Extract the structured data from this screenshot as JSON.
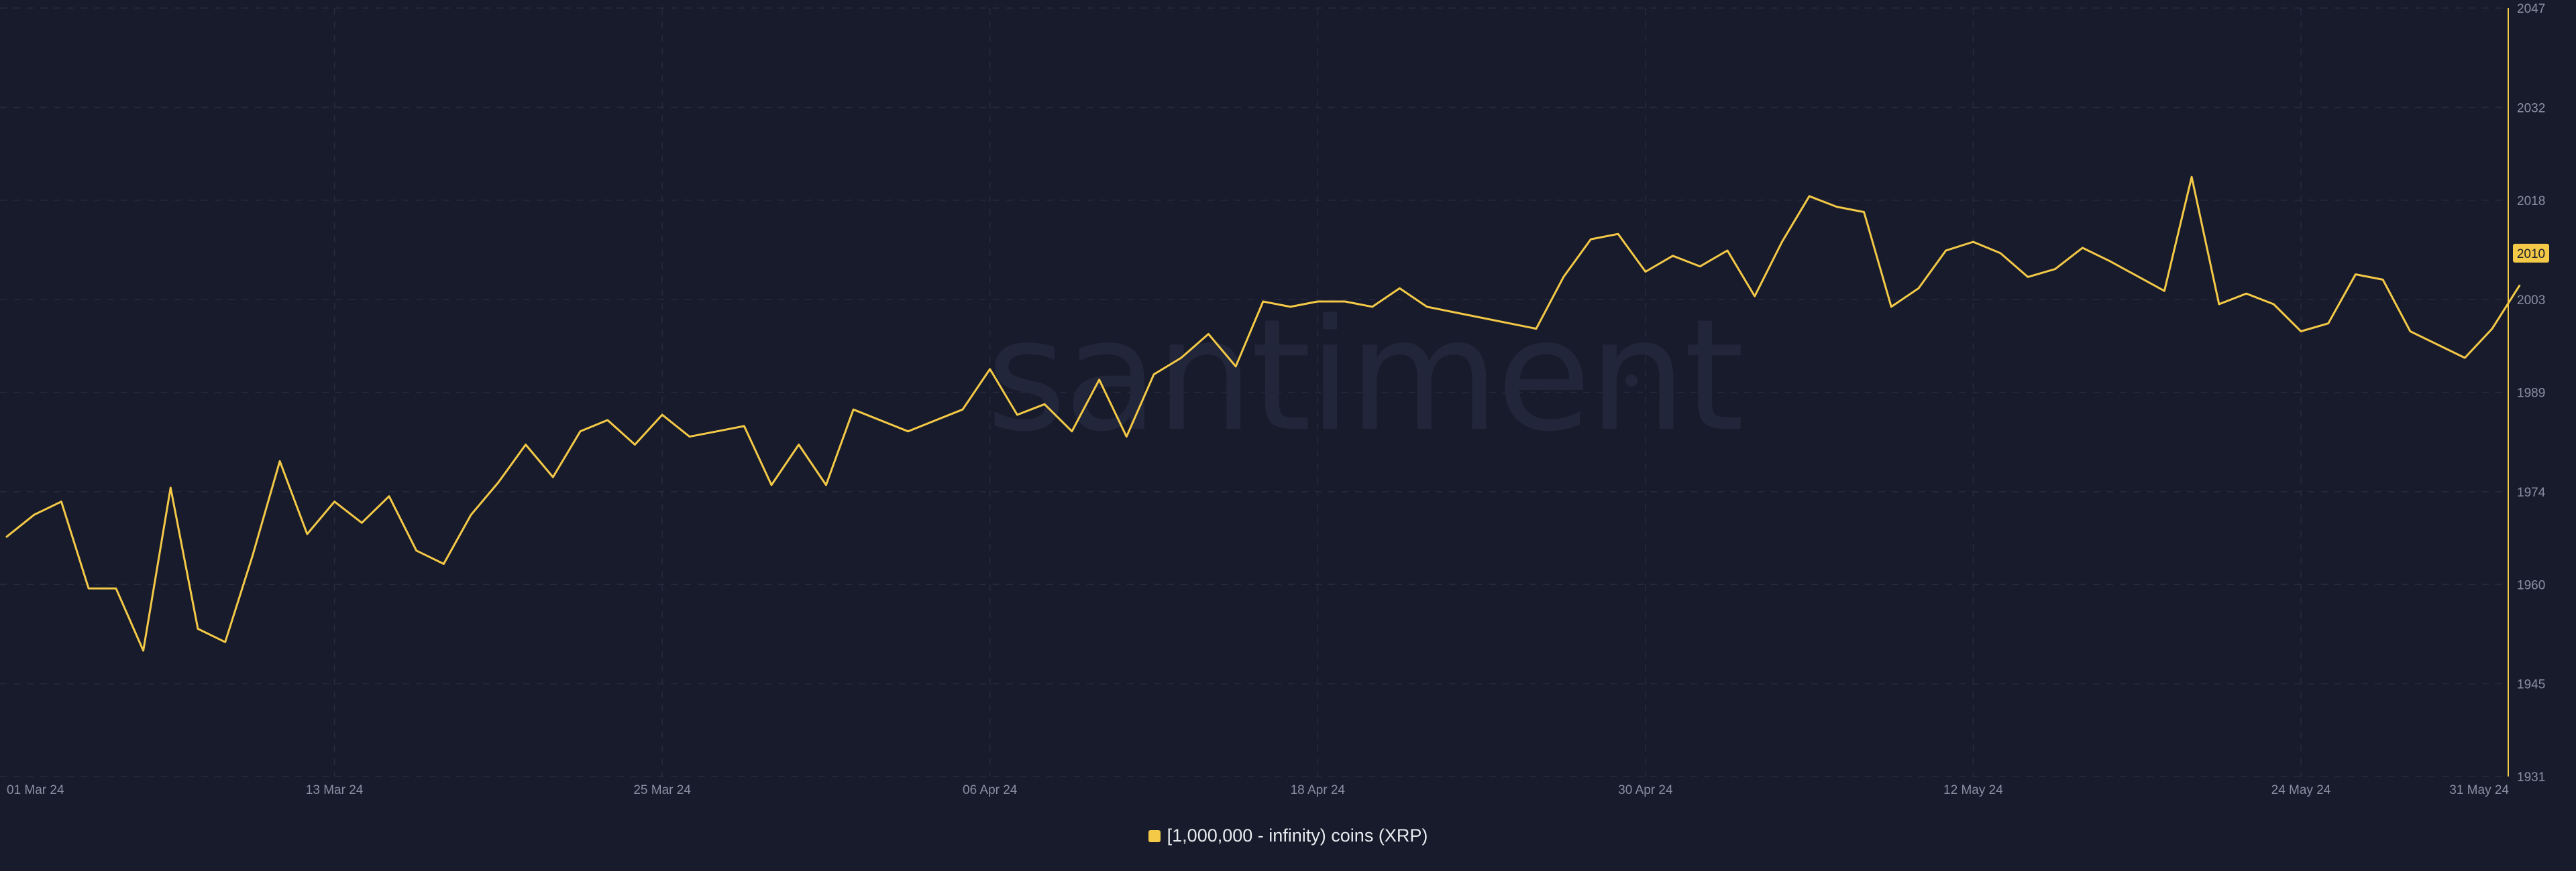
{
  "watermark": "santiment",
  "colors": {
    "background": "#181b2b",
    "line": "#f3c947",
    "grid": "#262a3c",
    "axis_text": "#8a8fa3",
    "badge_text": "#181b2b"
  },
  "legend": {
    "label": "[1,000,000 - infinity) coins (XRP)"
  },
  "current_value_badge": "2010",
  "chart_data": {
    "type": "line",
    "title": "",
    "xlabel": "",
    "ylabel": "",
    "x_ticks": [
      "01 Mar 24",
      "13 Mar 24",
      "25 Mar 24",
      "06 Apr 24",
      "18 Apr 24",
      "30 Apr 24",
      "12 May 24",
      "24 May 24",
      "31 May 24"
    ],
    "y_ticks": [
      1931,
      1945,
      1960,
      1974,
      1989,
      2003,
      2018,
      2032,
      2047
    ],
    "xlim": [
      "2024-03-01",
      "2024-05-31"
    ],
    "ylim": [
      1931,
      2047
    ],
    "grid": true,
    "axis_position": "right",
    "series": [
      {
        "name": "[1,000,000 - infinity) coins (XRP)",
        "points": [
          [
            "2024-03-01",
            1967.2
          ],
          [
            "2024-03-02",
            1970.5
          ],
          [
            "2024-03-03",
            1972.5
          ],
          [
            "2024-03-04",
            1959.4
          ],
          [
            "2024-03-05",
            1959.4
          ],
          [
            "2024-03-06",
            1950.0
          ],
          [
            "2024-03-07",
            1974.6
          ],
          [
            "2024-03-08",
            1953.3
          ],
          [
            "2024-03-09",
            1951.3
          ],
          [
            "2024-03-10",
            1964.3
          ],
          [
            "2024-03-11",
            1978.6
          ],
          [
            "2024-03-12",
            1967.6
          ],
          [
            "2024-03-13",
            1972.5
          ],
          [
            "2024-03-14",
            1969.3
          ],
          [
            "2024-03-15",
            1973.3
          ],
          [
            "2024-03-16",
            1965.1
          ],
          [
            "2024-03-17",
            1963.1
          ],
          [
            "2024-03-18",
            1970.5
          ],
          [
            "2024-03-19",
            1975.4
          ],
          [
            "2024-03-20",
            1981.1
          ],
          [
            "2024-03-21",
            1976.2
          ],
          [
            "2024-03-22",
            1983.1
          ],
          [
            "2024-03-23",
            1984.8
          ],
          [
            "2024-03-24",
            1981.1
          ],
          [
            "2024-03-25",
            1985.6
          ],
          [
            "2024-03-26",
            1982.3
          ],
          [
            "2024-03-27",
            1983.1
          ],
          [
            "2024-03-28",
            1983.9
          ],
          [
            "2024-03-29",
            1975.0
          ],
          [
            "2024-03-30",
            1981.1
          ],
          [
            "2024-03-31",
            1975.0
          ],
          [
            "2024-04-01",
            1986.4
          ],
          [
            "2024-04-03",
            1983.1
          ],
          [
            "2024-04-05",
            1986.4
          ],
          [
            "2024-04-06",
            1992.5
          ],
          [
            "2024-04-07",
            1985.6
          ],
          [
            "2024-04-08",
            1987.2
          ],
          [
            "2024-04-09",
            1983.1
          ],
          [
            "2024-04-10",
            1990.9
          ],
          [
            "2024-04-11",
            1982.3
          ],
          [
            "2024-04-12",
            1991.7
          ],
          [
            "2024-04-13",
            1994.2
          ],
          [
            "2024-04-14",
            1997.8
          ],
          [
            "2024-04-15",
            1992.9
          ],
          [
            "2024-04-16",
            2002.7
          ],
          [
            "2024-04-17",
            2001.9
          ],
          [
            "2024-04-18",
            2002.7
          ],
          [
            "2024-04-19",
            2002.7
          ],
          [
            "2024-04-20",
            2001.9
          ],
          [
            "2024-04-21",
            2004.7
          ],
          [
            "2024-04-22",
            2001.9
          ],
          [
            "2024-04-26",
            1998.6
          ],
          [
            "2024-04-27",
            2006.4
          ],
          [
            "2024-04-28",
            2012.1
          ],
          [
            "2024-04-29",
            2012.9
          ],
          [
            "2024-04-30",
            2007.2
          ],
          [
            "2024-05-01",
            2009.6
          ],
          [
            "2024-05-02",
            2008.0
          ],
          [
            "2024-05-03",
            2010.4
          ],
          [
            "2024-05-04",
            2003.5
          ],
          [
            "2024-05-05",
            2011.7
          ],
          [
            "2024-05-06",
            2018.6
          ],
          [
            "2024-05-07",
            2017.0
          ],
          [
            "2024-05-08",
            2016.2
          ],
          [
            "2024-05-09",
            2001.9
          ],
          [
            "2024-05-10",
            2004.7
          ],
          [
            "2024-05-11",
            2010.4
          ],
          [
            "2024-05-12",
            2011.7
          ],
          [
            "2024-05-13",
            2010.0
          ],
          [
            "2024-05-14",
            2006.4
          ],
          [
            "2024-05-15",
            2007.6
          ],
          [
            "2024-05-16",
            2010.8
          ],
          [
            "2024-05-17",
            2008.8
          ],
          [
            "2024-05-19",
            2004.3
          ],
          [
            "2024-05-20",
            2021.5
          ],
          [
            "2024-05-21",
            2002.3
          ],
          [
            "2024-05-22",
            2003.9
          ],
          [
            "2024-05-23",
            2002.3
          ],
          [
            "2024-05-24",
            1998.2
          ],
          [
            "2024-05-25",
            1999.4
          ],
          [
            "2024-05-26",
            2006.8
          ],
          [
            "2024-05-27",
            2006.0
          ],
          [
            "2024-05-28",
            1998.2
          ],
          [
            "2024-05-30",
            1994.2
          ],
          [
            "2024-05-31",
            1998.6
          ],
          [
            "2024-06-01",
            2005.1
          ]
        ]
      }
    ]
  }
}
